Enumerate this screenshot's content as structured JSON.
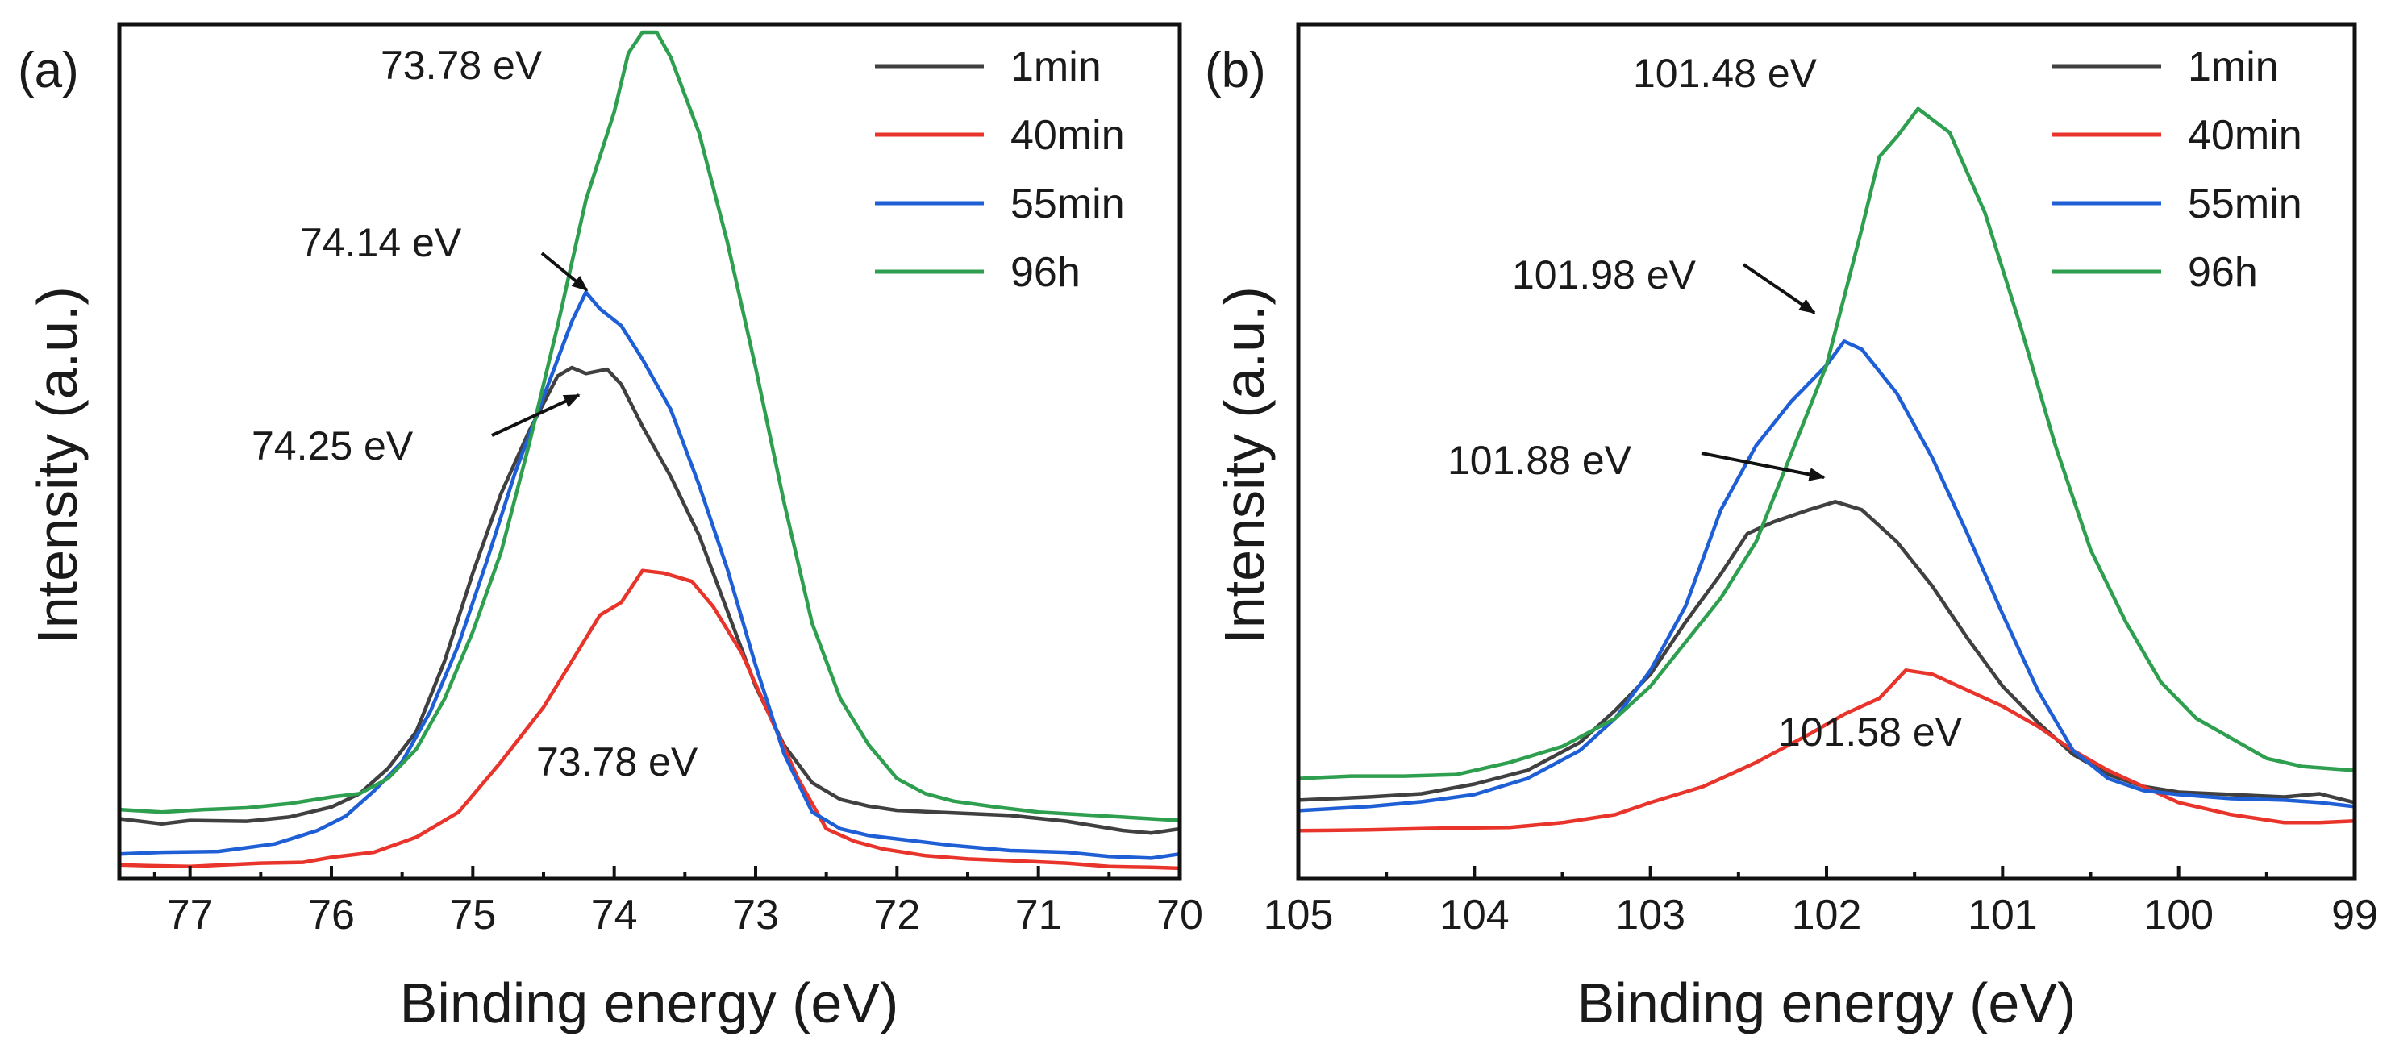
{
  "chart_data": [
    {
      "type": "line",
      "panel": "(a)",
      "xlabel": "Binding energy (eV)",
      "ylabel": "Intensity (a.u.)",
      "xlim": [
        77.5,
        70
      ],
      "ylim": [
        0,
        100
      ],
      "x_reversed": true,
      "xticks": [
        77,
        76,
        75,
        74,
        73,
        72,
        71,
        70
      ],
      "xtick_labels": [
        "77",
        "76",
        "75",
        "74",
        "73",
        "72",
        "71",
        "70"
      ],
      "legend": [
        "1min",
        "40min",
        "55min",
        "96h"
      ],
      "legend_position": "top-right",
      "series": [
        {
          "name": "1min",
          "color": "#404040",
          "points": [
            [
              77.5,
              6.2
            ],
            [
              77.2,
              5.6
            ],
            [
              77.0,
              6.0
            ],
            [
              76.6,
              5.9
            ],
            [
              76.3,
              6.4
            ],
            [
              76.0,
              7.6
            ],
            [
              75.8,
              9.2
            ],
            [
              75.6,
              12.2
            ],
            [
              75.4,
              16.6
            ],
            [
              75.2,
              25.0
            ],
            [
              75.0,
              35.5
            ],
            [
              74.8,
              45.0
            ],
            [
              74.6,
              52.5
            ],
            [
              74.4,
              59.0
            ],
            [
              74.3,
              60.0
            ],
            [
              74.2,
              59.3
            ],
            [
              74.05,
              59.8
            ],
            [
              73.95,
              58.0
            ],
            [
              73.8,
              53.0
            ],
            [
              73.6,
              47.0
            ],
            [
              73.4,
              40.0
            ],
            [
              73.2,
              31.0
            ],
            [
              73.0,
              22.0
            ],
            [
              72.8,
              15.0
            ],
            [
              72.6,
              10.5
            ],
            [
              72.4,
              8.5
            ],
            [
              72.2,
              7.7
            ],
            [
              72.0,
              7.2
            ],
            [
              71.6,
              6.9
            ],
            [
              71.2,
              6.6
            ],
            [
              70.8,
              5.9
            ],
            [
              70.4,
              4.8
            ],
            [
              70.2,
              4.5
            ],
            [
              70.0,
              5.0
            ]
          ]
        },
        {
          "name": "40min",
          "color": "#e8342a",
          "points": [
            [
              77.5,
              0.7
            ],
            [
              77.3,
              0.6
            ],
            [
              77.0,
              0.5
            ],
            [
              76.5,
              0.9
            ],
            [
              76.2,
              1.0
            ],
            [
              76.0,
              1.6
            ],
            [
              75.7,
              2.2
            ],
            [
              75.4,
              4.0
            ],
            [
              75.1,
              7.0
            ],
            [
              74.8,
              13.0
            ],
            [
              74.5,
              19.5
            ],
            [
              74.3,
              25.0
            ],
            [
              74.1,
              30.5
            ],
            [
              73.95,
              32.0
            ],
            [
              73.8,
              35.8
            ],
            [
              73.65,
              35.5
            ],
            [
              73.45,
              34.5
            ],
            [
              73.3,
              31.5
            ],
            [
              73.1,
              26.0
            ],
            [
              72.9,
              18.5
            ],
            [
              72.7,
              11.0
            ],
            [
              72.5,
              5.0
            ],
            [
              72.3,
              3.5
            ],
            [
              72.1,
              2.6
            ],
            [
              71.8,
              1.8
            ],
            [
              71.5,
              1.4
            ],
            [
              71.2,
              1.2
            ],
            [
              70.8,
              0.9
            ],
            [
              70.5,
              0.5
            ],
            [
              70.2,
              0.4
            ],
            [
              70.0,
              0.3
            ]
          ]
        },
        {
          "name": "55min",
          "color": "#1f5fd6",
          "points": [
            [
              77.5,
              2.0
            ],
            [
              77.2,
              2.2
            ],
            [
              76.8,
              2.3
            ],
            [
              76.4,
              3.2
            ],
            [
              76.1,
              4.8
            ],
            [
              75.9,
              6.5
            ],
            [
              75.7,
              9.5
            ],
            [
              75.5,
              13.0
            ],
            [
              75.3,
              19.0
            ],
            [
              75.1,
              27.0
            ],
            [
              74.9,
              37.0
            ],
            [
              74.7,
              47.5
            ],
            [
              74.5,
              56.5
            ],
            [
              74.3,
              65.5
            ],
            [
              74.2,
              69.0
            ],
            [
              74.1,
              67.0
            ],
            [
              73.95,
              65.0
            ],
            [
              73.8,
              61.0
            ],
            [
              73.6,
              55.0
            ],
            [
              73.4,
              46.0
            ],
            [
              73.2,
              36.0
            ],
            [
              73.0,
              24.5
            ],
            [
              72.8,
              14.0
            ],
            [
              72.6,
              7.0
            ],
            [
              72.4,
              5.0
            ],
            [
              72.2,
              4.2
            ],
            [
              72.0,
              3.8
            ],
            [
              71.6,
              3.0
            ],
            [
              71.2,
              2.4
            ],
            [
              70.8,
              2.2
            ],
            [
              70.5,
              1.7
            ],
            [
              70.2,
              1.5
            ],
            [
              70.0,
              2.0
            ]
          ]
        },
        {
          "name": "96h",
          "color": "#2e9e4f",
          "points": [
            [
              77.5,
              7.3
            ],
            [
              77.2,
              7.0
            ],
            [
              76.9,
              7.3
            ],
            [
              76.6,
              7.5
            ],
            [
              76.3,
              8.0
            ],
            [
              76.0,
              8.8
            ],
            [
              75.8,
              9.2
            ],
            [
              75.6,
              11.0
            ],
            [
              75.4,
              14.5
            ],
            [
              75.2,
              20.5
            ],
            [
              75.0,
              28.5
            ],
            [
              74.8,
              38.0
            ],
            [
              74.6,
              51.0
            ],
            [
              74.4,
              65.0
            ],
            [
              74.2,
              80.0
            ],
            [
              74.0,
              90.5
            ],
            [
              73.9,
              97.5
            ],
            [
              73.8,
              100.0
            ],
            [
              73.7,
              100.0
            ],
            [
              73.6,
              97.0
            ],
            [
              73.4,
              88.0
            ],
            [
              73.2,
              75.0
            ],
            [
              73.0,
              60.0
            ],
            [
              72.8,
              44.0
            ],
            [
              72.6,
              29.5
            ],
            [
              72.4,
              20.5
            ],
            [
              72.2,
              15.0
            ],
            [
              72.0,
              11.0
            ],
            [
              71.8,
              9.2
            ],
            [
              71.6,
              8.3
            ],
            [
              71.3,
              7.6
            ],
            [
              71.0,
              7.0
            ],
            [
              70.6,
              6.6
            ],
            [
              70.3,
              6.3
            ],
            [
              70.0,
              6.0
            ]
          ]
        }
      ],
      "annotations": [
        {
          "text": "73.78 eV",
          "x": 73.78,
          "y": 100,
          "target": "96h peak"
        },
        {
          "text": "74.14 eV",
          "x": 74.14,
          "y": 68,
          "target": "55min peak",
          "arrow": true
        },
        {
          "text": "74.25 eV",
          "x": 74.25,
          "y": 59,
          "target": "1min peak",
          "arrow": true
        },
        {
          "text": "73.78 eV",
          "x": 73.78,
          "y": 35.8,
          "target": "40min peak"
        }
      ]
    },
    {
      "type": "line",
      "panel": "(b)",
      "xlabel": "Binding energy (eV)",
      "ylabel": "Intensity (a.u.)",
      "xlim": [
        105,
        99
      ],
      "ylim": [
        0,
        100
      ],
      "x_reversed": true,
      "xticks": [
        105,
        104,
        103,
        102,
        101,
        100,
        99
      ],
      "xtick_labels": [
        "105",
        "104",
        "103",
        "102",
        "101",
        "100",
        "99"
      ],
      "legend": [
        "1min",
        "40min",
        "55min",
        "96h"
      ],
      "legend_position": "top-right",
      "series": [
        {
          "name": "1min",
          "color": "#404040",
          "points": [
            [
              105.0,
              8.8
            ],
            [
              104.6,
              9.2
            ],
            [
              104.3,
              9.6
            ],
            [
              104.0,
              10.8
            ],
            [
              103.7,
              12.5
            ],
            [
              103.4,
              16.0
            ],
            [
              103.2,
              20.0
            ],
            [
              103.0,
              24.5
            ],
            [
              102.8,
              31.0
            ],
            [
              102.6,
              37.0
            ],
            [
              102.45,
              42.0
            ],
            [
              102.3,
              43.5
            ],
            [
              102.1,
              45.0
            ],
            [
              101.95,
              46.0
            ],
            [
              101.8,
              45.0
            ],
            [
              101.6,
              41.0
            ],
            [
              101.4,
              35.5
            ],
            [
              101.2,
              29.0
            ],
            [
              101.0,
              23.0
            ],
            [
              100.8,
              18.5
            ],
            [
              100.6,
              14.5
            ],
            [
              100.4,
              12.0
            ],
            [
              100.2,
              10.5
            ],
            [
              100.0,
              9.8
            ],
            [
              99.7,
              9.5
            ],
            [
              99.4,
              9.2
            ],
            [
              99.2,
              9.6
            ],
            [
              99.0,
              8.5
            ]
          ]
        },
        {
          "name": "40min",
          "color": "#e8342a",
          "points": [
            [
              105.0,
              5.0
            ],
            [
              104.6,
              5.1
            ],
            [
              104.2,
              5.3
            ],
            [
              103.8,
              5.4
            ],
            [
              103.5,
              6.0
            ],
            [
              103.2,
              7.0
            ],
            [
              103.0,
              8.5
            ],
            [
              102.7,
              10.5
            ],
            [
              102.4,
              13.5
            ],
            [
              102.1,
              17.0
            ],
            [
              101.9,
              19.5
            ],
            [
              101.7,
              21.5
            ],
            [
              101.55,
              25.0
            ],
            [
              101.4,
              24.5
            ],
            [
              101.2,
              22.5
            ],
            [
              101.0,
              20.5
            ],
            [
              100.8,
              18.0
            ],
            [
              100.6,
              15.0
            ],
            [
              100.4,
              12.5
            ],
            [
              100.2,
              10.5
            ],
            [
              100.0,
              8.5
            ],
            [
              99.7,
              7.0
            ],
            [
              99.4,
              6.0
            ],
            [
              99.2,
              6.0
            ],
            [
              99.0,
              6.2
            ]
          ]
        },
        {
          "name": "55min",
          "color": "#1f5fd6",
          "points": [
            [
              105.0,
              7.5
            ],
            [
              104.6,
              8.0
            ],
            [
              104.3,
              8.6
            ],
            [
              104.0,
              9.5
            ],
            [
              103.7,
              11.5
            ],
            [
              103.4,
              15.0
            ],
            [
              103.2,
              19.0
            ],
            [
              103.0,
              25.0
            ],
            [
              102.8,
              33.0
            ],
            [
              102.6,
              45.0
            ],
            [
              102.4,
              53.0
            ],
            [
              102.2,
              58.5
            ],
            [
              102.0,
              63.0
            ],
            [
              101.9,
              66.0
            ],
            [
              101.8,
              65.0
            ],
            [
              101.6,
              59.5
            ],
            [
              101.4,
              51.5
            ],
            [
              101.2,
              42.0
            ],
            [
              101.0,
              32.0
            ],
            [
              100.8,
              22.5
            ],
            [
              100.6,
              15.0
            ],
            [
              100.4,
              11.5
            ],
            [
              100.2,
              10.0
            ],
            [
              100.0,
              9.5
            ],
            [
              99.7,
              9.0
            ],
            [
              99.4,
              8.8
            ],
            [
              99.2,
              8.5
            ],
            [
              99.0,
              8.0
            ]
          ]
        },
        {
          "name": "96h",
          "color": "#2e9e4f",
          "points": [
            [
              105.0,
              11.5
            ],
            [
              104.7,
              11.8
            ],
            [
              104.4,
              11.8
            ],
            [
              104.1,
              12.0
            ],
            [
              103.8,
              13.5
            ],
            [
              103.5,
              15.5
            ],
            [
              103.2,
              19.0
            ],
            [
              103.0,
              23.0
            ],
            [
              102.8,
              28.5
            ],
            [
              102.6,
              34.0
            ],
            [
              102.4,
              41.0
            ],
            [
              102.2,
              52.0
            ],
            [
              102.0,
              63.0
            ],
            [
              101.8,
              80.0
            ],
            [
              101.7,
              89.0
            ],
            [
              101.6,
              91.5
            ],
            [
              101.48,
              95.0
            ],
            [
              101.3,
              92.0
            ],
            [
              101.1,
              82.0
            ],
            [
              100.9,
              68.0
            ],
            [
              100.7,
              53.0
            ],
            [
              100.5,
              40.0
            ],
            [
              100.3,
              31.0
            ],
            [
              100.1,
              23.5
            ],
            [
              99.9,
              19.0
            ],
            [
              99.7,
              16.5
            ],
            [
              99.5,
              14.0
            ],
            [
              99.3,
              13.0
            ],
            [
              99.0,
              12.5
            ]
          ]
        }
      ],
      "annotations": [
        {
          "text": "101.48 eV",
          "x": 101.48,
          "y": 95,
          "target": "96h peak"
        },
        {
          "text": "101.98 eV",
          "x": 101.98,
          "y": 66,
          "target": "55min peak",
          "arrow": true
        },
        {
          "text": "101.88 eV",
          "x": 101.88,
          "y": 46,
          "target": "1min peak",
          "arrow": true
        },
        {
          "text": "101.58 eV",
          "x": 101.58,
          "y": 25,
          "target": "40min peak"
        }
      ]
    }
  ]
}
